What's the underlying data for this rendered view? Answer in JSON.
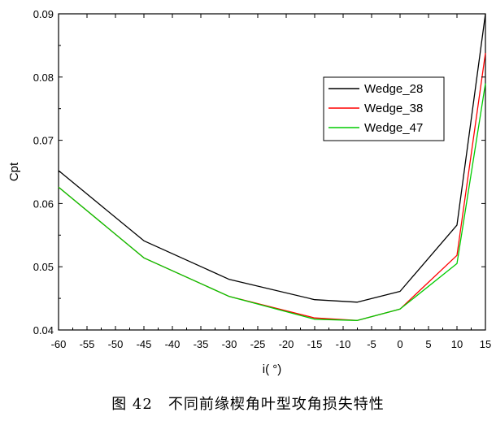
{
  "caption": "图 42　不同前缘楔角叶型攻角损失特性",
  "chart_data": {
    "type": "line",
    "xlabel": "i( °)",
    "ylabel": "Cpt",
    "xlim": [
      -60,
      15
    ],
    "ylim": [
      0.04,
      0.09
    ],
    "x_ticks": [
      -60,
      -55,
      -50,
      -45,
      -40,
      -35,
      -30,
      -25,
      -20,
      -15,
      -10,
      -5,
      0,
      5,
      10,
      15
    ],
    "y_ticks": [
      0.04,
      0.05,
      0.06,
      0.07,
      0.08,
      0.09
    ],
    "y_tick_labels": [
      "0.04",
      "0.05",
      "0.06",
      "0.07",
      "0.08",
      "0.09"
    ],
    "legend_position": "top-right",
    "grid": false,
    "x": [
      -60,
      -45,
      -30,
      -15,
      -7.5,
      0,
      10,
      15
    ],
    "series": [
      {
        "name": "Wedge_28",
        "color": "#000000",
        "values": [
          0.0652,
          0.0541,
          0.048,
          0.0448,
          0.0444,
          0.0461,
          0.0566,
          0.09
        ]
      },
      {
        "name": "Wedge_38",
        "color": "#ff0000",
        "values": [
          0.0626,
          0.0514,
          0.0453,
          0.0419,
          0.0415,
          0.0433,
          0.0518,
          0.0838
        ]
      },
      {
        "name": "Wedge_47",
        "color": "#00cc00",
        "values": [
          0.0626,
          0.0514,
          0.0453,
          0.0417,
          0.0415,
          0.0433,
          0.0505,
          0.079
        ]
      }
    ]
  }
}
